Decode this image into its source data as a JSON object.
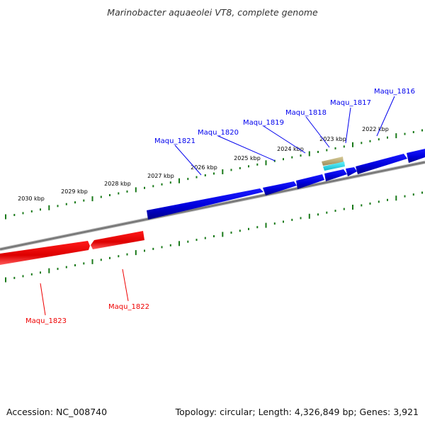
{
  "title": "Marinobacter aquaeolei VT8, complete genome",
  "footer": {
    "accession": "Accession: NC_008740",
    "topology": "Topology: circular; Length: 4,326,849 bp; Genes: 3,921"
  },
  "colors": {
    "forward_gene": "#0000ee",
    "reverse_gene": "#ee0000",
    "backbone": "#7a7a7a",
    "tick": "#1a7a1a",
    "trna": "#b8aa78",
    "rrna": "#22d8e8"
  },
  "tick_labels": [
    "2030 kbp",
    "2029 kbp",
    "2028 kbp",
    "2027 kbp",
    "2026 kbp",
    "2025 kbp",
    "2024 kbp",
    "2023 kbp",
    "2022 kbp"
  ],
  "genes": [
    {
      "label": "Maqu_1816",
      "strand": "forward"
    },
    {
      "label": "Maqu_1817",
      "strand": "forward"
    },
    {
      "label": "Maqu_1818",
      "strand": "forward"
    },
    {
      "label": "Maqu_1819",
      "strand": "forward"
    },
    {
      "label": "Maqu_1820",
      "strand": "forward"
    },
    {
      "label": "Maqu_1821",
      "strand": "forward"
    },
    {
      "label": "Maqu_1822",
      "strand": "reverse"
    },
    {
      "label": "Maqu_1823",
      "strand": "reverse"
    }
  ]
}
